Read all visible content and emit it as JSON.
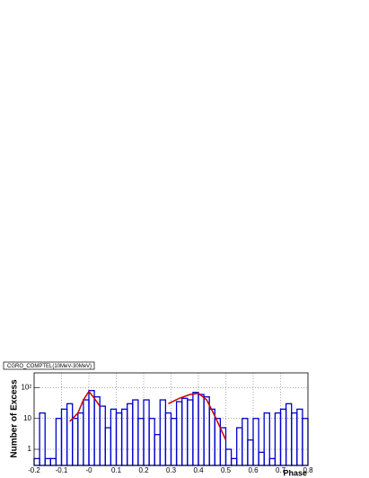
{
  "chart_data": {
    "type": "histogram",
    "title": "CGRO_COMPTEL(10MeV-30MeV)",
    "xlabel": "Phase",
    "ylabel": "Number of Excess",
    "bins": [
      -0.2,
      -0.18,
      -0.16,
      -0.14,
      -0.12,
      -0.1,
      -0.08,
      -0.06,
      -0.04,
      -0.02,
      0,
      0.02,
      0.04,
      0.06,
      0.08,
      0.1,
      0.12,
      0.14,
      0.16,
      0.18,
      0.2,
      0.22,
      0.24,
      0.26,
      0.28,
      0.3,
      0.32,
      0.34,
      0.36,
      0.38,
      0.4,
      0.42,
      0.44,
      0.46,
      0.48,
      0.5,
      0.52,
      0.54,
      0.56,
      0.58,
      0.6,
      0.62,
      0.64,
      0.66,
      0.68,
      0.7,
      0.72,
      0.74,
      0.76,
      0.78,
      0.8
    ],
    "values": [
      0.5,
      15,
      0.5,
      0.5,
      10,
      20,
      30,
      10,
      15,
      40,
      80,
      50,
      25,
      5,
      20,
      15,
      20,
      30,
      40,
      10,
      40,
      10,
      3,
      40,
      15,
      10,
      35,
      45,
      40,
      70,
      60,
      50,
      20,
      10,
      5,
      1,
      0.5,
      5,
      10,
      2,
      10,
      0.8,
      15,
      0.5,
      15,
      20,
      30,
      15,
      20,
      10
    ],
    "color": "#0000cc",
    "fit": [
      {
        "x": [
          -0.07,
          -0.04,
          -0.02,
          0,
          0.02,
          0.04
        ],
        "values": [
          8,
          15,
          40,
          75,
          45,
          25
        ]
      },
      {
        "x": [
          0.29,
          0.33,
          0.37,
          0.4,
          0.43,
          0.46,
          0.5
        ],
        "values": [
          30,
          45,
          60,
          65,
          40,
          12,
          2
        ]
      }
    ],
    "fit_color": "#cc0000",
    "xlim": [
      -0.2,
      0.8
    ],
    "xticks": [
      -0.2,
      -0.1,
      {
        "value": 0,
        "label": "-0"
      },
      0.1,
      0.2,
      0.3,
      0.4,
      0.5,
      0.6,
      0.7,
      0.8
    ],
    "ylim": [
      0.3,
      300
    ],
    "log_y": true,
    "yticks": [
      1,
      10,
      {
        "value": 100,
        "label": "10²"
      }
    ],
    "grid": true
  }
}
